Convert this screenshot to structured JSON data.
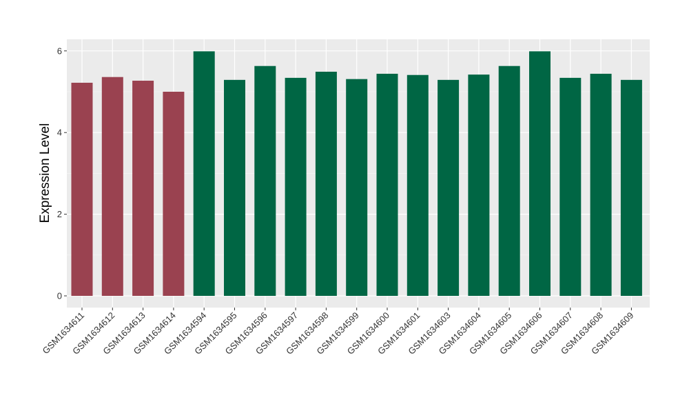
{
  "chart_data": {
    "type": "bar",
    "title": "",
    "xlabel": "",
    "ylabel": "Expression Level",
    "ylim": [
      0,
      6.3
    ],
    "yticks": [
      0,
      2,
      4,
      6
    ],
    "grid": true,
    "legend": "none",
    "background": "#EBEBEB",
    "gridline_color": "#FFFFFF",
    "categories": [
      "GSM1634611",
      "GSM1634612",
      "GSM1634613",
      "GSM1634614",
      "GSM1634594",
      "GSM1634595",
      "GSM1634596",
      "GSM1634597",
      "GSM1634598",
      "GSM1634599",
      "GSM1634600",
      "GSM1634601",
      "GSM1634603",
      "GSM1634604",
      "GSM1634605",
      "GSM1634606",
      "GSM1634607",
      "GSM1634608",
      "GSM1634609"
    ],
    "values": [
      5.22,
      5.36,
      5.27,
      5.0,
      5.99,
      5.29,
      5.63,
      5.34,
      5.49,
      5.31,
      5.44,
      5.41,
      5.29,
      5.42,
      5.63,
      5.99,
      5.34,
      5.44,
      5.29
    ],
    "bar_colors": [
      "#9A4250",
      "#9A4250",
      "#9A4250",
      "#9A4250",
      "#006644",
      "#006644",
      "#006644",
      "#006644",
      "#006644",
      "#006644",
      "#006644",
      "#006644",
      "#006644",
      "#006644",
      "#006644",
      "#006644",
      "#006644",
      "#006644",
      "#006644"
    ]
  }
}
